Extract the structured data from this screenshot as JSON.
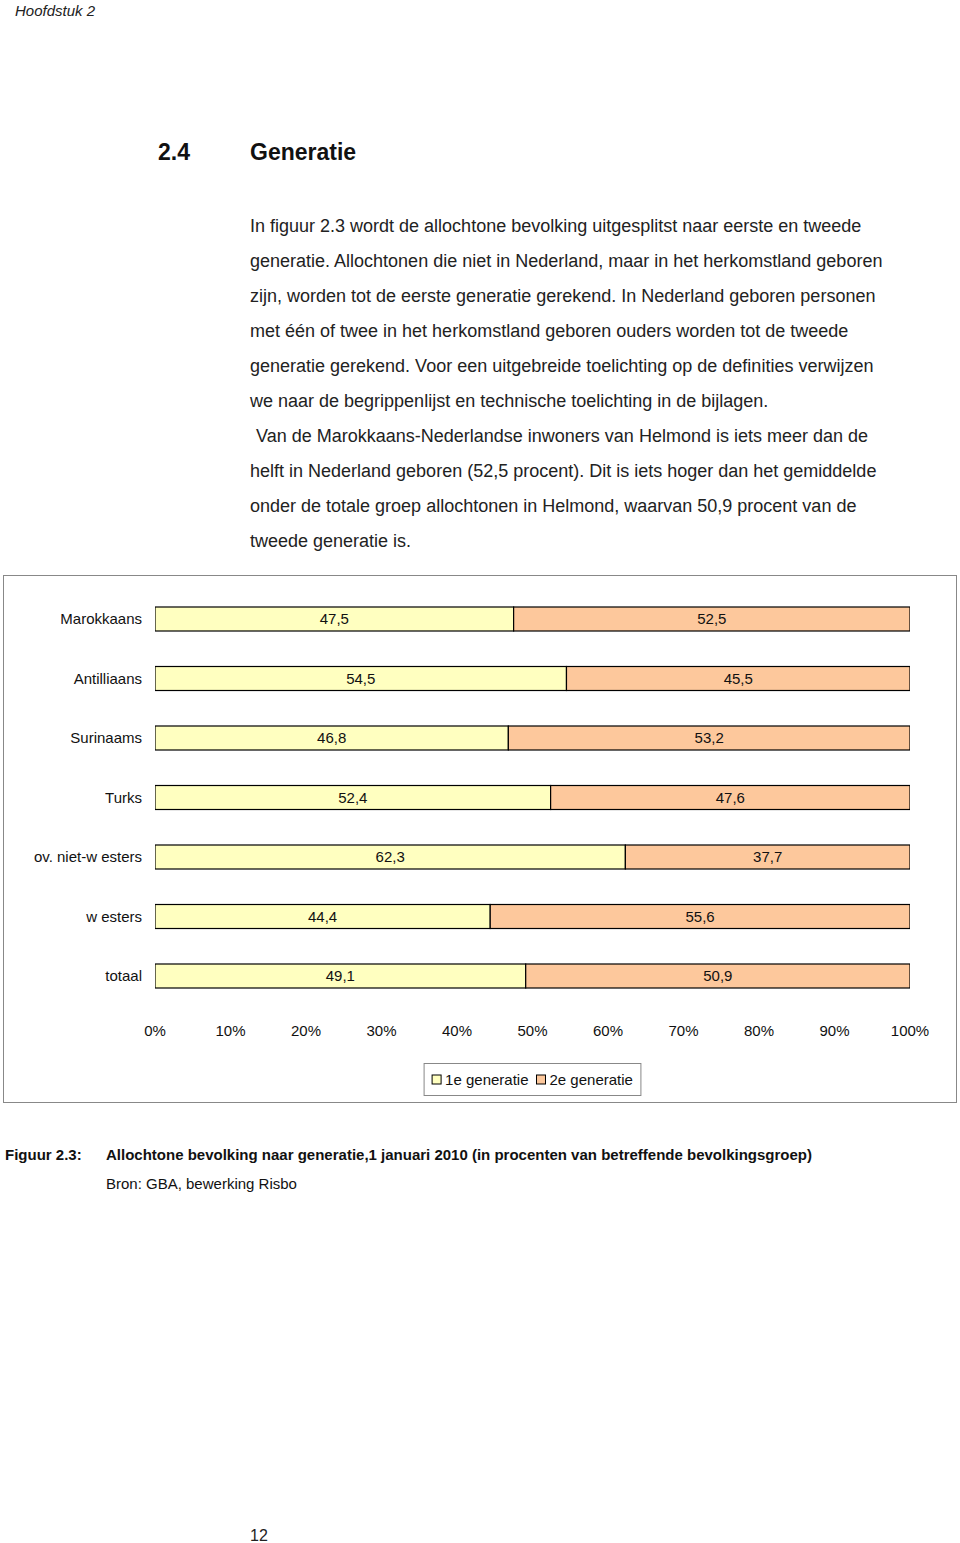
{
  "header": "Hoofdstuk 2",
  "section": {
    "number": "2.4",
    "title": "Generatie"
  },
  "paragraphs": [
    [
      "In figuur 2.3 wordt de allochtone bevolking uitgesplitst naar eerste en tweede",
      "generatie. Allochtonen die niet in Nederland, maar in het herkomstland geboren",
      "zijn, worden tot de eerste generatie gerekend. In Nederland geboren personen",
      "met één of twee in het herkomstland geboren ouders worden tot de tweede",
      "generatie gerekend. Voor een uitgebreide toelichting op de definities verwijzen",
      "we naar de begrippenlijst en technische toelichting in de bijlagen."
    ],
    [
      "Van de Marokkaans-Nederlandse inwoners van Helmond is iets meer dan de",
      "helft in Nederland geboren (52,5 procent). Dit is iets hoger dan het gemiddelde",
      "onder de totale groep allochtonen in Helmond, waarvan 50,9 procent van de",
      "tweede generatie is."
    ]
  ],
  "chart_data": {
    "type": "bar",
    "orientation": "horizontal",
    "stacked": true,
    "data_labels": true,
    "legend": "bottom",
    "grid": false,
    "categories": [
      "Marokkaans",
      "Antilliaans",
      "Surinaams",
      "Turks",
      "ov. niet-w esters",
      "w esters",
      "totaal"
    ],
    "series": [
      {
        "name": "1e generatie",
        "color": "#ffffc0",
        "values": [
          47.5,
          54.5,
          46.8,
          52.4,
          62.3,
          44.4,
          49.1
        ],
        "value_labels": [
          "47,5",
          "54,5",
          "46,8",
          "52,4",
          "62,3",
          "44,4",
          "49,1"
        ]
      },
      {
        "name": "2e generatie",
        "color": "#fdc89c",
        "values": [
          52.5,
          45.5,
          53.2,
          47.6,
          37.7,
          55.6,
          50.9
        ],
        "value_labels": [
          "52,5",
          "45,5",
          "53,2",
          "47,6",
          "37,7",
          "55,6",
          "50,9"
        ]
      }
    ],
    "xlim": [
      0,
      100
    ],
    "xticks": [
      {
        "value": 0,
        "label": "0%"
      },
      {
        "value": 10,
        "label": "10%"
      },
      {
        "value": 20,
        "label": "20%"
      },
      {
        "value": 30,
        "label": "30%"
      },
      {
        "value": 40,
        "label": "40%"
      },
      {
        "value": 50,
        "label": "50%"
      },
      {
        "value": 60,
        "label": "60%"
      },
      {
        "value": 70,
        "label": "70%"
      },
      {
        "value": 80,
        "label": "80%"
      },
      {
        "value": 90,
        "label": "90%"
      },
      {
        "value": 100,
        "label": "100%"
      }
    ]
  },
  "caption": {
    "label": "Figuur 2.3:",
    "text": "Allochtone bevolking naar generatie,1 januari 2010 (in procenten van betreffende bevolkingsgroep)",
    "source": "Bron: GBA, bewerking Risbo"
  },
  "page_number": "12"
}
